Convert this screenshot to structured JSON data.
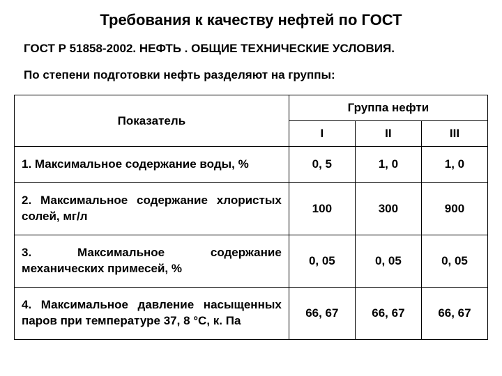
{
  "title": "Требования к качеству нефтей по ГОСТ",
  "subtitle": "ГОСТ Р 51858-2002.  НЕФТЬ . ОБЩИЕ ТЕХНИЧЕСКИЕ УСЛОВИЯ.",
  "intro": "По степени подготовки нефть разделяют на группы:",
  "table": {
    "param_header": "Показатель",
    "group_header": "Группа нефти",
    "groups": [
      "I",
      "II",
      "III"
    ],
    "rows": [
      {
        "label": "1. Максимальное содержание воды, %",
        "values": [
          "0, 5",
          "1, 0",
          "1, 0"
        ]
      },
      {
        "label": "2. Максимальное содержание хлористых солей, мг/л",
        "values": [
          "100",
          "300",
          "900"
        ]
      },
      {
        "label": "3. Максимальное содержание механических примесей, %",
        "values": [
          "0, 05",
          "0, 05",
          "0, 05"
        ]
      },
      {
        "label": "4. Максимальное давление насыщенных паров при температуре 37, 8 °С, к. Па",
        "values": [
          "66, 67",
          "66, 67",
          "66, 67"
        ]
      }
    ]
  },
  "styling": {
    "background_color": "#ffffff",
    "text_color": "#000000",
    "border_color": "#000000",
    "font_family": "Arial",
    "title_fontsize": 22,
    "body_fontsize": 17,
    "column_widths_pct": [
      58,
      14,
      14,
      14
    ]
  }
}
